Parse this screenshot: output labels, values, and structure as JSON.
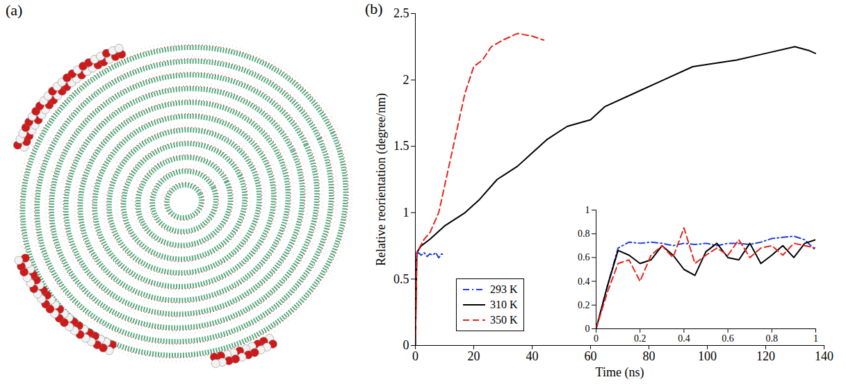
{
  "panel_a": {
    "label": "(a)"
  },
  "chart_data": [
    {
      "type": "line",
      "label": "(b)",
      "xlabel": "Time (ns)",
      "ylabel": "Relative reorientation (degree/nm)",
      "xlim": [
        0,
        140
      ],
      "xticks": [
        0,
        20,
        40,
        60,
        80,
        100,
        120,
        140
      ],
      "ylim": [
        0,
        2.5
      ],
      "yticks": [
        0,
        0.5,
        1,
        1.5,
        2,
        2.5
      ],
      "grid": false,
      "legend": "lower left",
      "series": [
        {
          "name": "293 K",
          "color": "#1f3fd6",
          "line_style": "dashdot",
          "x": [
            0,
            0.1,
            0.5,
            1,
            2,
            3,
            4,
            5,
            6,
            7,
            8,
            9,
            10
          ],
          "values": [
            0,
            0.6,
            0.68,
            0.7,
            0.68,
            0.7,
            0.67,
            0.69,
            0.68,
            0.7,
            0.66,
            0.69,
            0.68
          ]
        },
        {
          "name": "310 K",
          "color": "#000000",
          "line_style": "solid",
          "x": [
            0,
            0.5,
            2,
            5,
            10,
            17,
            22,
            28,
            35,
            40,
            45,
            52,
            60,
            65,
            75,
            85,
            95,
            110,
            120,
            130,
            135,
            137
          ],
          "values": [
            0,
            0.7,
            0.75,
            0.8,
            0.9,
            1.0,
            1.1,
            1.25,
            1.35,
            1.45,
            1.55,
            1.65,
            1.7,
            1.8,
            1.9,
            2.0,
            2.1,
            2.15,
            2.2,
            2.25,
            2.22,
            2.2
          ]
        },
        {
          "name": "350 K",
          "color": "#e8231a",
          "line_style": "dashed",
          "x": [
            0,
            0.5,
            3,
            5,
            8,
            11,
            14,
            17,
            20,
            23,
            26,
            30,
            35,
            40,
            44
          ],
          "values": [
            0,
            0.7,
            0.8,
            0.85,
            1.0,
            1.3,
            1.6,
            1.9,
            2.1,
            2.15,
            2.25,
            2.3,
            2.35,
            2.33,
            2.3
          ]
        }
      ]
    },
    {
      "type": "line",
      "xlim": [
        0,
        1
      ],
      "xticks": [
        0,
        0.2,
        0.4,
        0.6,
        0.8,
        1
      ],
      "ylim": [
        0,
        1
      ],
      "yticks": [
        0,
        0.2,
        0.4,
        0.6,
        0.8,
        1
      ],
      "grid": false,
      "series": [
        {
          "name": "293 K",
          "color": "#1f3fd6",
          "line_style": "dashdot",
          "x": [
            0,
            0.05,
            0.1,
            0.15,
            0.2,
            0.25,
            0.3,
            0.35,
            0.4,
            0.45,
            0.5,
            0.55,
            0.6,
            0.65,
            0.7,
            0.75,
            0.8,
            0.85,
            0.9,
            0.95,
            1
          ],
          "values": [
            0,
            0.35,
            0.68,
            0.73,
            0.72,
            0.73,
            0.72,
            0.7,
            0.72,
            0.71,
            0.72,
            0.7,
            0.72,
            0.72,
            0.71,
            0.73,
            0.76,
            0.77,
            0.78,
            0.75,
            0.66
          ]
        },
        {
          "name": "310 K",
          "color": "#000000",
          "line_style": "solid",
          "x": [
            0,
            0.05,
            0.1,
            0.15,
            0.2,
            0.25,
            0.3,
            0.35,
            0.4,
            0.45,
            0.5,
            0.55,
            0.6,
            0.65,
            0.7,
            0.75,
            0.8,
            0.85,
            0.9,
            0.95,
            1
          ],
          "values": [
            0,
            0.35,
            0.66,
            0.62,
            0.55,
            0.58,
            0.7,
            0.62,
            0.5,
            0.45,
            0.65,
            0.72,
            0.6,
            0.58,
            0.72,
            0.55,
            0.62,
            0.7,
            0.6,
            0.72,
            0.75
          ]
        },
        {
          "name": "350 K",
          "color": "#e8231a",
          "line_style": "dashed",
          "x": [
            0,
            0.05,
            0.1,
            0.15,
            0.2,
            0.25,
            0.3,
            0.35,
            0.4,
            0.45,
            0.5,
            0.55,
            0.6,
            0.65,
            0.7,
            0.75,
            0.8,
            0.85,
            0.9,
            0.95,
            1
          ],
          "values": [
            0,
            0.3,
            0.55,
            0.58,
            0.4,
            0.62,
            0.7,
            0.6,
            0.85,
            0.55,
            0.62,
            0.68,
            0.62,
            0.75,
            0.6,
            0.68,
            0.7,
            0.62,
            0.72,
            0.7,
            0.68
          ]
        }
      ]
    }
  ]
}
